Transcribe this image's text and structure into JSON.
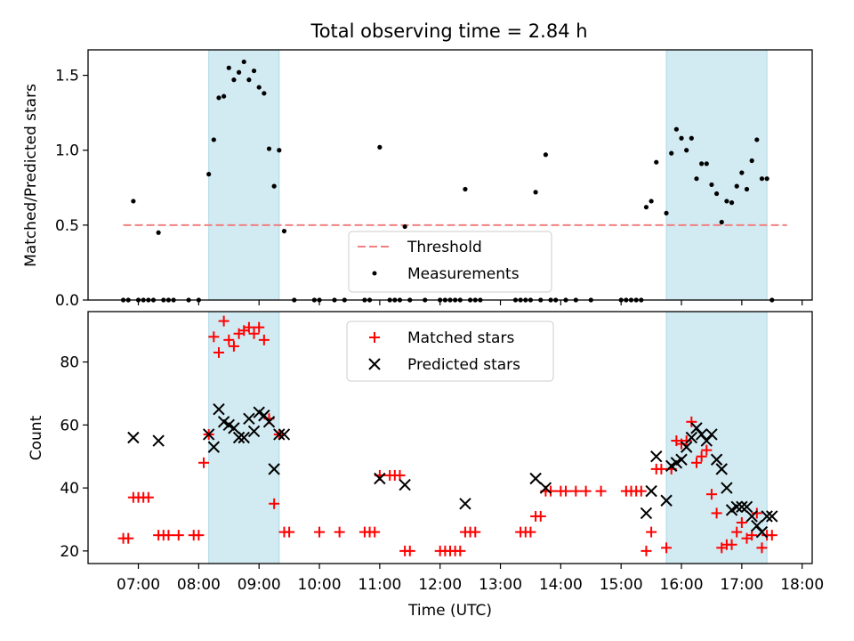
{
  "title": "Total observing time = 2.84 h",
  "chart_data": [
    {
      "type": "scatter",
      "ylabel": "Matched/Predicted stars",
      "ylim": [
        0,
        1.67
      ],
      "yticks": [
        0.0,
        0.5,
        1.0,
        1.5
      ],
      "yticklabels": [
        "0.0",
        "0.5",
        "1.0",
        "1.5"
      ],
      "threshold": {
        "label": "Threshold",
        "value": 0.5,
        "x_range": [
          "06:45",
          "17:45"
        ],
        "color": "#f08080"
      },
      "legend": {
        "position": "bottom-center",
        "entries": [
          "Threshold",
          "Measurements"
        ]
      },
      "series": [
        {
          "name": "Measurements",
          "color": "#000000",
          "marker": "dot",
          "points": [
            [
              "06:45",
              0
            ],
            [
              "06:50",
              0
            ],
            [
              "06:55",
              0.66
            ],
            [
              "07:00",
              0
            ],
            [
              "07:05",
              0
            ],
            [
              "07:10",
              0
            ],
            [
              "07:15",
              0
            ],
            [
              "07:20",
              0.45
            ],
            [
              "07:25",
              0
            ],
            [
              "07:30",
              0
            ],
            [
              "07:35",
              0
            ],
            [
              "07:50",
              0
            ],
            [
              "08:00",
              0
            ],
            [
              "08:10",
              0.84
            ],
            [
              "08:15",
              1.07
            ],
            [
              "08:20",
              1.35
            ],
            [
              "08:25",
              1.36
            ],
            [
              "08:30",
              1.55
            ],
            [
              "08:35",
              1.47
            ],
            [
              "08:40",
              1.52
            ],
            [
              "08:45",
              1.59
            ],
            [
              "08:50",
              1.47
            ],
            [
              "08:55",
              1.53
            ],
            [
              "09:00",
              1.42
            ],
            [
              "09:05",
              1.38
            ],
            [
              "09:10",
              1.01
            ],
            [
              "09:15",
              0.76
            ],
            [
              "09:20",
              1.0
            ],
            [
              "09:25",
              0.46
            ],
            [
              "09:35",
              0
            ],
            [
              "09:55",
              0
            ],
            [
              "10:00",
              0
            ],
            [
              "10:15",
              0
            ],
            [
              "10:25",
              0
            ],
            [
              "10:45",
              0
            ],
            [
              "10:50",
              0
            ],
            [
              "11:00",
              1.02
            ],
            [
              "11:10",
              0
            ],
            [
              "11:15",
              0
            ],
            [
              "11:20",
              0
            ],
            [
              "11:25",
              0.49
            ],
            [
              "11:30",
              0
            ],
            [
              "11:45",
              0
            ],
            [
              "12:00",
              0
            ],
            [
              "12:05",
              0
            ],
            [
              "12:10",
              0
            ],
            [
              "12:15",
              0
            ],
            [
              "12:20",
              0
            ],
            [
              "12:25",
              0.74
            ],
            [
              "12:30",
              0
            ],
            [
              "12:35",
              0
            ],
            [
              "12:40",
              0
            ],
            [
              "13:15",
              0
            ],
            [
              "13:20",
              0
            ],
            [
              "13:25",
              0
            ],
            [
              "13:30",
              0
            ],
            [
              "13:35",
              0.72
            ],
            [
              "13:40",
              0
            ],
            [
              "13:45",
              0.97
            ],
            [
              "13:50",
              0
            ],
            [
              "13:55",
              0
            ],
            [
              "14:05",
              0
            ],
            [
              "14:15",
              0
            ],
            [
              "14:30",
              0
            ],
            [
              "15:00",
              0
            ],
            [
              "15:05",
              0
            ],
            [
              "15:10",
              0
            ],
            [
              "15:15",
              0
            ],
            [
              "15:20",
              0
            ],
            [
              "15:25",
              0.62
            ],
            [
              "15:30",
              0.66
            ],
            [
              "15:35",
              0.92
            ],
            [
              "15:45",
              0.58
            ],
            [
              "15:50",
              0.98
            ],
            [
              "15:55",
              1.14
            ],
            [
              "16:00",
              1.08
            ],
            [
              "16:05",
              1.0
            ],
            [
              "16:10",
              1.08
            ],
            [
              "16:15",
              0.81
            ],
            [
              "16:20",
              0.91
            ],
            [
              "16:25",
              0.91
            ],
            [
              "16:30",
              0.77
            ],
            [
              "16:35",
              0.71
            ],
            [
              "16:40",
              0.52
            ],
            [
              "16:45",
              0.66
            ],
            [
              "16:50",
              0.65
            ],
            [
              "16:55",
              0.76
            ],
            [
              "17:00",
              0.85
            ],
            [
              "17:05",
              0.74
            ],
            [
              "17:10",
              0.93
            ],
            [
              "17:15",
              1.07
            ],
            [
              "17:20",
              0.81
            ],
            [
              "17:25",
              0.81
            ],
            [
              "17:30",
              0
            ]
          ]
        }
      ]
    },
    {
      "type": "scatter",
      "xlabel": "Time (UTC)",
      "ylabel": "Count",
      "ylim": [
        16,
        96
      ],
      "yticks": [
        20,
        40,
        60,
        80
      ],
      "yticklabels": [
        "20",
        "40",
        "60",
        "80"
      ],
      "xlim": [
        "06:10",
        "18:10"
      ],
      "xticks": [
        "07:00",
        "08:00",
        "09:00",
        "10:00",
        "11:00",
        "12:00",
        "13:00",
        "14:00",
        "15:00",
        "16:00",
        "17:00",
        "18:00"
      ],
      "xticklabels": [
        "07:00",
        "08:00",
        "09:00",
        "10:00",
        "11:00",
        "12:00",
        "13:00",
        "14:00",
        "15:00",
        "16:00",
        "17:00",
        "18:00"
      ],
      "legend": {
        "position": "top-center",
        "entries": [
          "Matched stars",
          "Predicted stars"
        ]
      },
      "series": [
        {
          "name": "Matched stars",
          "color": "#ff0000",
          "marker": "plus",
          "points": [
            [
              "06:45",
              24
            ],
            [
              "06:50",
              24
            ],
            [
              "06:55",
              37
            ],
            [
              "07:00",
              37
            ],
            [
              "07:05",
              37
            ],
            [
              "07:10",
              37
            ],
            [
              "07:20",
              25
            ],
            [
              "07:25",
              25
            ],
            [
              "07:30",
              25
            ],
            [
              "07:40",
              25
            ],
            [
              "07:55",
              25
            ],
            [
              "08:00",
              25
            ],
            [
              "08:05",
              48
            ],
            [
              "08:10",
              57
            ],
            [
              "08:15",
              88
            ],
            [
              "08:20",
              83
            ],
            [
              "08:25",
              93
            ],
            [
              "08:30",
              87
            ],
            [
              "08:35",
              85
            ],
            [
              "08:40",
              89
            ],
            [
              "08:45",
              90
            ],
            [
              "08:50",
              91
            ],
            [
              "08:55",
              89
            ],
            [
              "09:00",
              91
            ],
            [
              "09:05",
              87
            ],
            [
              "09:10",
              62
            ],
            [
              "09:15",
              35
            ],
            [
              "09:20",
              57
            ],
            [
              "09:25",
              26
            ],
            [
              "09:30",
              26
            ],
            [
              "10:00",
              26
            ],
            [
              "10:20",
              26
            ],
            [
              "10:45",
              26
            ],
            [
              "10:50",
              26
            ],
            [
              "10:55",
              26
            ],
            [
              "11:00",
              44
            ],
            [
              "11:10",
              44
            ],
            [
              "11:15",
              44
            ],
            [
              "11:20",
              44
            ],
            [
              "11:25",
              20
            ],
            [
              "11:30",
              20
            ],
            [
              "12:00",
              20
            ],
            [
              "12:05",
              20
            ],
            [
              "12:10",
              20
            ],
            [
              "12:15",
              20
            ],
            [
              "12:20",
              20
            ],
            [
              "12:25",
              26
            ],
            [
              "12:30",
              26
            ],
            [
              "12:35",
              26
            ],
            [
              "13:20",
              26
            ],
            [
              "13:25",
              26
            ],
            [
              "13:30",
              26
            ],
            [
              "13:35",
              31
            ],
            [
              "13:40",
              31
            ],
            [
              "13:45",
              39
            ],
            [
              "13:50",
              39
            ],
            [
              "14:00",
              39
            ],
            [
              "14:05",
              39
            ],
            [
              "14:15",
              39
            ],
            [
              "14:25",
              39
            ],
            [
              "14:40",
              39
            ],
            [
              "15:05",
              39
            ],
            [
              "15:10",
              39
            ],
            [
              "15:15",
              39
            ],
            [
              "15:20",
              39
            ],
            [
              "15:25",
              20
            ],
            [
              "15:30",
              26
            ],
            [
              "15:35",
              46
            ],
            [
              "15:40",
              46
            ],
            [
              "15:45",
              21
            ],
            [
              "15:50",
              46
            ],
            [
              "15:55",
              55
            ],
            [
              "16:00",
              54
            ],
            [
              "16:05",
              55
            ],
            [
              "16:10",
              61
            ],
            [
              "16:15",
              48
            ],
            [
              "16:20",
              50
            ],
            [
              "16:25",
              52
            ],
            [
              "16:30",
              38
            ],
            [
              "16:35",
              32
            ],
            [
              "16:40",
              21
            ],
            [
              "16:45",
              22
            ],
            [
              "16:50",
              22
            ],
            [
              "16:55",
              26
            ],
            [
              "17:00",
              29
            ],
            [
              "17:05",
              24
            ],
            [
              "17:10",
              25
            ],
            [
              "17:15",
              32
            ],
            [
              "17:20",
              21
            ],
            [
              "17:25",
              25
            ],
            [
              "17:30",
              25
            ]
          ]
        },
        {
          "name": "Predicted stars",
          "color": "#000000",
          "marker": "x",
          "points": [
            [
              "06:55",
              56
            ],
            [
              "07:20",
              55
            ],
            [
              "08:10",
              57
            ],
            [
              "08:15",
              53
            ],
            [
              "08:20",
              65
            ],
            [
              "08:25",
              61
            ],
            [
              "08:30",
              60
            ],
            [
              "08:35",
              59
            ],
            [
              "08:40",
              56
            ],
            [
              "08:45",
              56
            ],
            [
              "08:50",
              62
            ],
            [
              "08:55",
              58
            ],
            [
              "09:00",
              64
            ],
            [
              "09:05",
              63
            ],
            [
              "09:10",
              61
            ],
            [
              "09:15",
              46
            ],
            [
              "09:20",
              57
            ],
            [
              "09:25",
              57
            ],
            [
              "11:00",
              43
            ],
            [
              "11:25",
              41
            ],
            [
              "12:25",
              35
            ],
            [
              "13:35",
              43
            ],
            [
              "13:45",
              40
            ],
            [
              "15:25",
              32
            ],
            [
              "15:30",
              39
            ],
            [
              "15:35",
              50
            ],
            [
              "15:45",
              36
            ],
            [
              "15:50",
              47
            ],
            [
              "15:55",
              48
            ],
            [
              "16:00",
              49
            ],
            [
              "16:05",
              53
            ],
            [
              "16:10",
              56
            ],
            [
              "16:15",
              59
            ],
            [
              "16:20",
              57
            ],
            [
              "16:25",
              55
            ],
            [
              "16:30",
              57
            ],
            [
              "16:35",
              49
            ],
            [
              "16:40",
              46
            ],
            [
              "16:45",
              40
            ],
            [
              "16:50",
              33
            ],
            [
              "16:55",
              34
            ],
            [
              "17:00",
              34
            ],
            [
              "17:05",
              34
            ],
            [
              "17:10",
              31
            ],
            [
              "17:15",
              28
            ],
            [
              "17:20",
              26
            ],
            [
              "17:25",
              31
            ],
            [
              "17:30",
              31
            ]
          ]
        }
      ]
    }
  ],
  "highlight_spans": [
    {
      "start": "08:10",
      "end": "09:20",
      "color": "#add8e6"
    },
    {
      "start": "15:45",
      "end": "17:25",
      "color": "#add8e6"
    }
  ]
}
